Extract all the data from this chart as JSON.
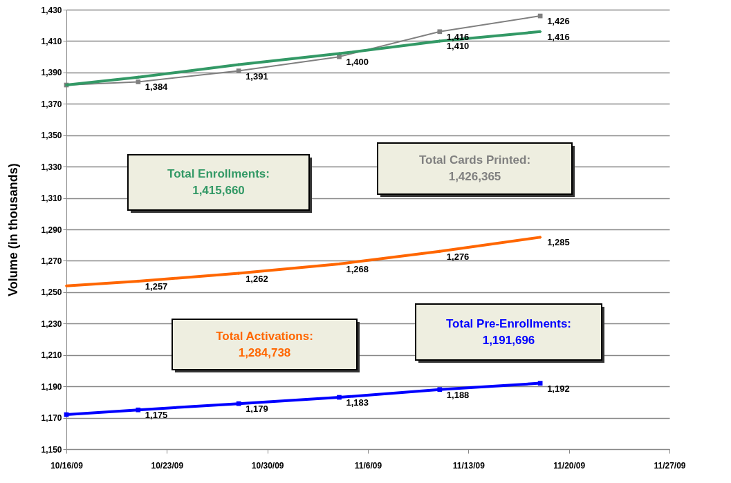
{
  "chart_data": {
    "type": "line",
    "ylabel": "Volume (in thousands)",
    "x": [
      "--10-16",
      "--10-21",
      "--10-28",
      "--11-04",
      "--11-11",
      "--11-18"
    ],
    "xlim": [
      "--10-16",
      "--11-27"
    ],
    "xticks": [
      {
        "value": "--10-16",
        "label": "10/16/09"
      },
      {
        "value": "--10-23",
        "label": "10/23/09"
      },
      {
        "value": "--10-30",
        "label": "10/30/09"
      },
      {
        "value": "--11-06",
        "label": "11/6/09"
      },
      {
        "value": "--11-13",
        "label": "11/13/09"
      },
      {
        "value": "--11-20",
        "label": "11/20/09"
      },
      {
        "value": "--11-27",
        "label": "11/27/09"
      }
    ],
    "ylim": [
      1150,
      1430
    ],
    "yticks": [
      {
        "value": 1150,
        "label": "1,150"
      },
      {
        "value": 1170,
        "label": "1,170"
      },
      {
        "value": 1190,
        "label": "1,190"
      },
      {
        "value": 1210,
        "label": "1,210"
      },
      {
        "value": 1230,
        "label": "1,230"
      },
      {
        "value": 1250,
        "label": "1,250"
      },
      {
        "value": 1270,
        "label": "1,270"
      },
      {
        "value": 1290,
        "label": "1,290"
      },
      {
        "value": 1310,
        "label": "1,310"
      },
      {
        "value": 1330,
        "label": "1,330"
      },
      {
        "value": 1350,
        "label": "1,350"
      },
      {
        "value": 1370,
        "label": "1,370"
      },
      {
        "value": 1390,
        "label": "1,390"
      },
      {
        "value": 1410,
        "label": "1,410"
      },
      {
        "value": 1430,
        "label": "1,430"
      }
    ],
    "grid": "y",
    "marker": "square",
    "series": [
      {
        "color": "#339966",
        "marker": "diamond",
        "values": [
          1382,
          1387,
          1395,
          1402,
          1410,
          1416
        ],
        "value_labels": [
          null,
          null,
          null,
          null,
          "1,410",
          "1,416"
        ]
      },
      {
        "color": "#808080",
        "values": [
          1382,
          1384,
          1391,
          1400,
          1416,
          1426
        ],
        "value_labels": [
          null,
          "1,384",
          "1,391",
          "1,400",
          "1,416",
          "1,426"
        ]
      },
      {
        "color": "#ff6600",
        "marker": "diamond",
        "values": [
          1254,
          1257,
          1262,
          1268,
          1276,
          1285
        ],
        "value_labels": [
          null,
          "1,257",
          "1,262",
          "1,268",
          "1,276",
          "1,285"
        ]
      },
      {
        "color": "#0000ff",
        "values": [
          1172,
          1175,
          1179,
          1183,
          1188,
          1192
        ],
        "value_labels": [
          null,
          "1,175",
          "1,179",
          "1,183",
          "1,188",
          "1,192"
        ]
      }
    ],
    "annotations": [
      "Total Enrollments:\n1,415,660",
      "Total Cards Printed:\n1,426,365",
      "Total Activations:\n1,284,738",
      "Total Pre-Enrollments:\n1,191,696"
    ]
  }
}
